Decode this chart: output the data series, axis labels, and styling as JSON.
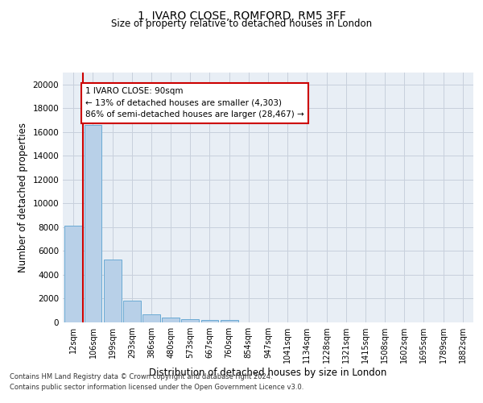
{
  "title1": "1, IVARO CLOSE, ROMFORD, RM5 3FF",
  "title2": "Size of property relative to detached houses in London",
  "xlabel": "Distribution of detached houses by size in London",
  "ylabel": "Number of detached properties",
  "annotation_line1": "1 IVARO CLOSE: 90sqm",
  "annotation_line2": "← 13% of detached houses are smaller (4,303)",
  "annotation_line3": "86% of semi-detached houses are larger (28,467) →",
  "bar_values": [
    8100,
    16600,
    5300,
    1850,
    700,
    380,
    290,
    230,
    200,
    0,
    0,
    0,
    0,
    0,
    0,
    0,
    0,
    0,
    0,
    0,
    0
  ],
  "bar_color": "#b8d0e8",
  "bar_edge_color": "#6aaad4",
  "categories": [
    "12sqm",
    "106sqm",
    "199sqm",
    "293sqm",
    "386sqm",
    "480sqm",
    "573sqm",
    "667sqm",
    "760sqm",
    "854sqm",
    "947sqm",
    "1041sqm",
    "1134sqm",
    "1228sqm",
    "1321sqm",
    "1415sqm",
    "1508sqm",
    "1602sqm",
    "1695sqm",
    "1789sqm",
    "1882sqm"
  ],
  "ylim": [
    0,
    21000
  ],
  "yticks": [
    0,
    2000,
    4000,
    6000,
    8000,
    10000,
    12000,
    14000,
    16000,
    18000,
    20000
  ],
  "vline_color": "#cc0000",
  "annotation_box_color": "#ffffff",
  "annotation_box_edge": "#cc0000",
  "grid_color": "#c8d0dc",
  "bg_color": "#e8eef5",
  "footnote1": "Contains HM Land Registry data © Crown copyright and database right 2024.",
  "footnote2": "Contains public sector information licensed under the Open Government Licence v3.0."
}
